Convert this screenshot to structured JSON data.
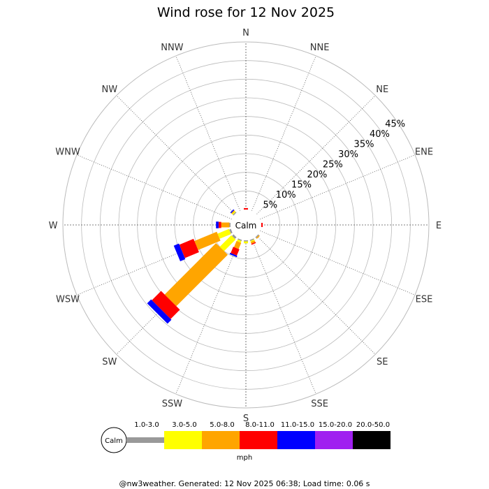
{
  "chart_data": {
    "type": "wind-rose",
    "title": "Wind rose for 12 Nov 2025",
    "directions": [
      "N",
      "NNE",
      "NE",
      "ENE",
      "E",
      "ESE",
      "SE",
      "SSE",
      "S",
      "SSW",
      "SW",
      "WSW",
      "W",
      "WNW",
      "NW",
      "NNW"
    ],
    "radial_ticks": [
      "5%",
      "10%",
      "15%",
      "20%",
      "25%",
      "30%",
      "35%",
      "40%",
      "45%"
    ],
    "radial_max": 45,
    "calm_label": "Calm",
    "speed_bins": [
      {
        "label": "1.0-3.0",
        "color": "#999999"
      },
      {
        "label": "3.0-5.0",
        "color": "#ffff00"
      },
      {
        "label": "5.0-8.0",
        "color": "#ffa500"
      },
      {
        "label": "8.0-11.0",
        "color": "#ff0000"
      },
      {
        "label": "11.0-15.0",
        "color": "#0000ff"
      },
      {
        "label": "15.0-20.0",
        "color": "#a020f0"
      },
      {
        "label": "20.0-50.0",
        "color": "#000000"
      }
    ],
    "units": "mph",
    "series": [
      {
        "direction": "N",
        "values": [
          0,
          0,
          0,
          0.4,
          0,
          0,
          0
        ]
      },
      {
        "direction": "NNE",
        "values": [
          0,
          0,
          0,
          0,
          0,
          0,
          0
        ]
      },
      {
        "direction": "NE",
        "values": [
          0,
          0,
          0,
          0,
          0,
          0,
          0
        ]
      },
      {
        "direction": "ENE",
        "values": [
          0,
          0,
          0,
          0,
          0,
          0,
          0
        ]
      },
      {
        "direction": "E",
        "values": [
          0,
          0,
          0,
          0.4,
          0,
          0,
          0
        ]
      },
      {
        "direction": "ESE",
        "values": [
          0,
          0,
          0,
          0,
          0,
          0,
          0
        ]
      },
      {
        "direction": "SE",
        "values": [
          0.3,
          0,
          0.3,
          0,
          0,
          0,
          0
        ]
      },
      {
        "direction": "SSE",
        "values": [
          0.3,
          0.3,
          0.5,
          0.3,
          0,
          0,
          0
        ]
      },
      {
        "direction": "S",
        "values": [
          0.3,
          0.5,
          0,
          0,
          0,
          0,
          0
        ]
      },
      {
        "direction": "SSW",
        "values": [
          0.3,
          0.5,
          1.8,
          1.8,
          0.4,
          0,
          0
        ]
      },
      {
        "direction": "SW",
        "values": [
          0.6,
          4.4,
          19.5,
          3.5,
          1.5,
          0,
          0
        ]
      },
      {
        "direction": "WSW",
        "values": [
          0.5,
          3.3,
          6.5,
          4.1,
          1.5,
          0,
          0
        ]
      },
      {
        "direction": "W",
        "values": [
          0.3,
          0,
          2.2,
          0.7,
          0.7,
          0,
          0
        ]
      },
      {
        "direction": "WNW",
        "values": [
          0,
          0,
          0,
          0,
          0,
          0,
          0
        ]
      },
      {
        "direction": "NW",
        "values": [
          0.3,
          0.3,
          0.3,
          0,
          0.3,
          0,
          0
        ]
      },
      {
        "direction": "NNW",
        "values": [
          0,
          0,
          0,
          0,
          0,
          0,
          0
        ]
      }
    ]
  },
  "footer": "@nw3weather. Generated: 12 Nov 2025 06:38; Load time: 0.06 s"
}
